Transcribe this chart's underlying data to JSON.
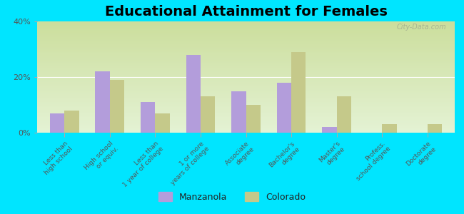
{
  "title": "Educational Attainment for Females",
  "categories": [
    "Less than\nhigh school",
    "High school\nor equiv.",
    "Less than\n1 year of college",
    "1 or more\nyears of college",
    "Associate\ndegree",
    "Bachelor's\ndegree",
    "Master's\ndegree",
    "Profess.\nschool degree",
    "Doctorate\ndegree"
  ],
  "manzanola": [
    7.0,
    22.0,
    11.0,
    28.0,
    15.0,
    18.0,
    2.0,
    0.0,
    0.0
  ],
  "colorado": [
    8.0,
    19.0,
    7.0,
    13.0,
    10.0,
    29.0,
    13.0,
    3.0,
    3.0
  ],
  "manzanola_color": "#b39ddb",
  "colorado_color": "#c5c98a",
  "bg_top_color": "#c8d8a0",
  "bg_bottom_color": "#f0f8e8",
  "outer_background": "#00e5ff",
  "ylim": [
    0,
    40
  ],
  "yticks": [
    0,
    20,
    40
  ],
  "ytick_labels": [
    "0%",
    "20%",
    "40%"
  ],
  "bar_width": 0.32,
  "title_fontsize": 14,
  "legend_labels": [
    "Manzanola",
    "Colorado"
  ],
  "watermark": "City-Data.com"
}
